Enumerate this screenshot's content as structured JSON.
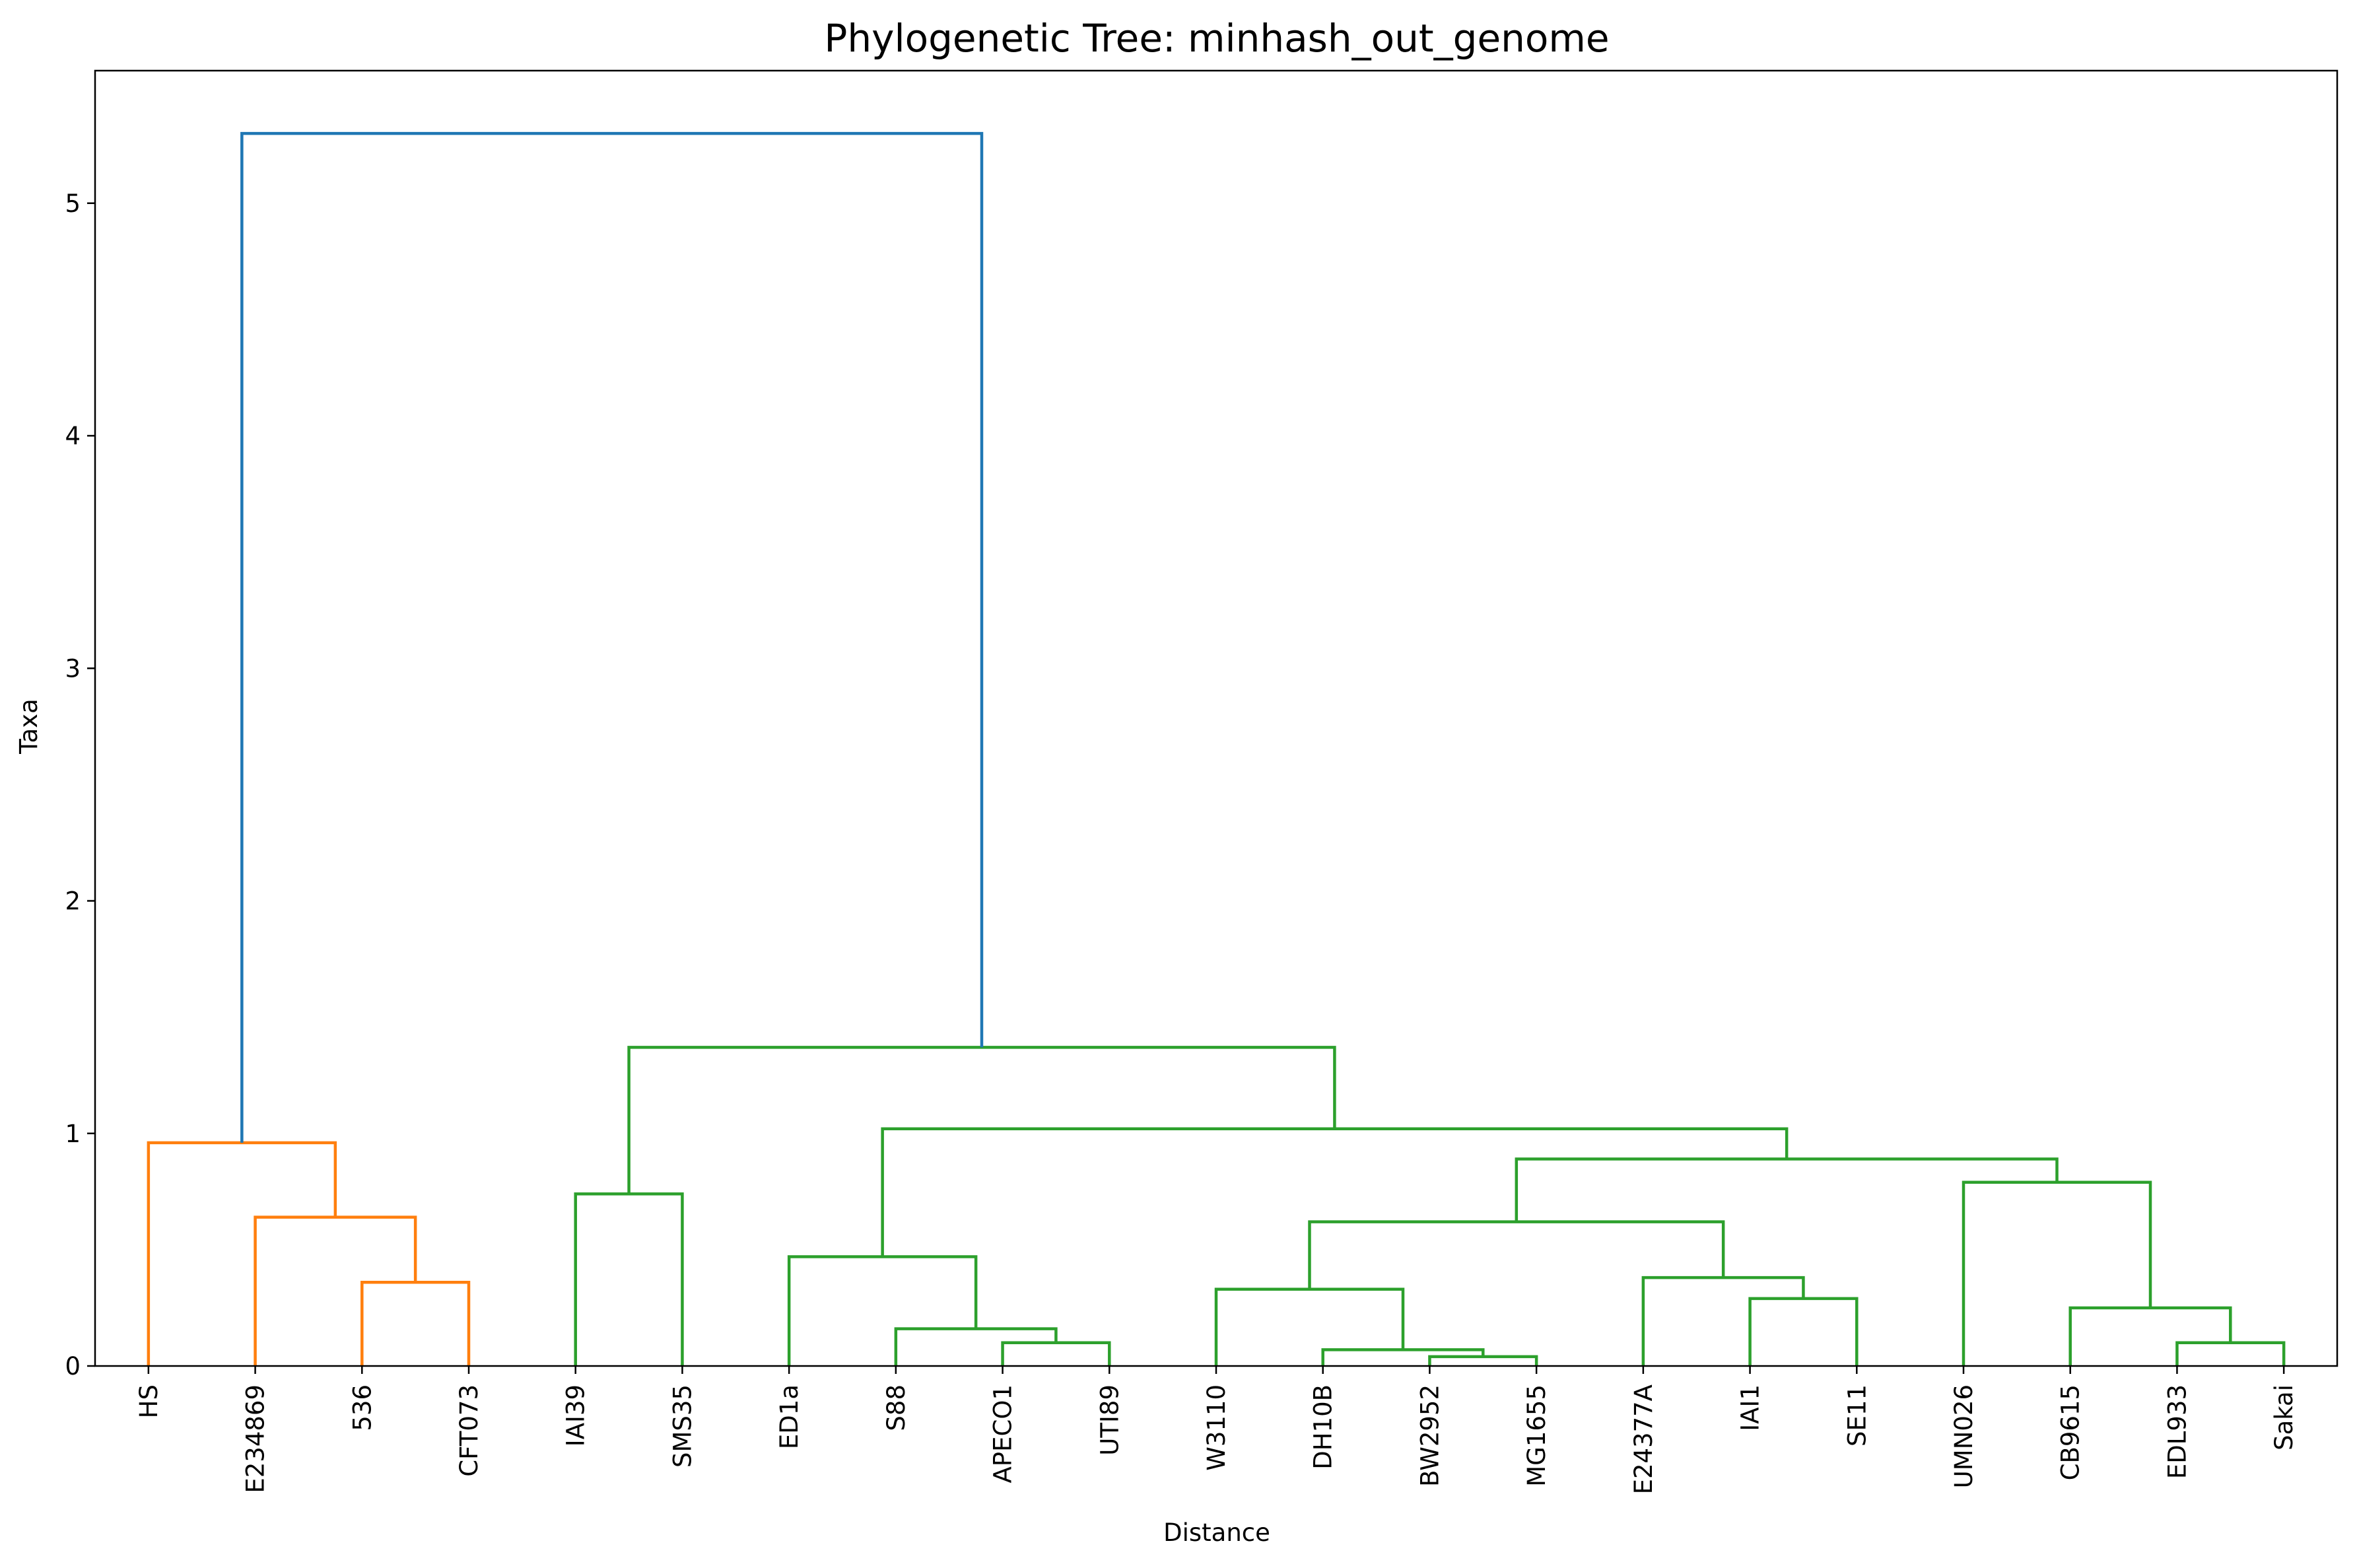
{
  "chart_data": {
    "type": "dendrogram",
    "title": "Phylogenetic Tree: minhash_out_genome",
    "xlabel": "Distance",
    "ylabel": "Taxa",
    "ylim": [
      0,
      5.57
    ],
    "yticks": [
      0,
      1,
      2,
      3,
      4,
      5
    ],
    "grid": false,
    "colors": {
      "root": "#1f77b4",
      "cluster_1": "#ff7f0e",
      "cluster_2": "#2ca02c"
    },
    "leaves": [
      "HS",
      "E234869",
      "536",
      "CFT073",
      "IAI39",
      "SMS35",
      "ED1a",
      "S88",
      "APECO1",
      "UTI89",
      "W3110",
      "DH10B",
      "BW2952",
      "MG1655",
      "E24377A",
      "IAI1",
      "SE11",
      "UMN026",
      "CB9615",
      "EDL933",
      "Sakai"
    ],
    "merges": [
      {
        "id": "m1",
        "left": "536",
        "right": "CFT073",
        "height": 0.36,
        "color": "cluster_1"
      },
      {
        "id": "m2",
        "left": "E234869",
        "right": "m1",
        "height": 0.64,
        "color": "cluster_1"
      },
      {
        "id": "m3",
        "left": "HS",
        "right": "m2",
        "height": 0.96,
        "color": "cluster_1"
      },
      {
        "id": "m4",
        "left": "IAI39",
        "right": "SMS35",
        "height": 0.74,
        "color": "cluster_2"
      },
      {
        "id": "m5",
        "left": "APECO1",
        "right": "UTI89",
        "height": 0.1,
        "color": "cluster_2"
      },
      {
        "id": "m6",
        "left": "S88",
        "right": "m5",
        "height": 0.16,
        "color": "cluster_2"
      },
      {
        "id": "m7",
        "left": "ED1a",
        "right": "m6",
        "height": 0.47,
        "color": "cluster_2"
      },
      {
        "id": "m8",
        "left": "BW2952",
        "right": "MG1655",
        "height": 0.04,
        "color": "cluster_2"
      },
      {
        "id": "m9",
        "left": "DH10B",
        "right": "m8",
        "height": 0.07,
        "color": "cluster_2"
      },
      {
        "id": "m10",
        "left": "W3110",
        "right": "m9",
        "height": 0.33,
        "color": "cluster_2"
      },
      {
        "id": "m11",
        "left": "IAI1",
        "right": "SE11",
        "height": 0.29,
        "color": "cluster_2"
      },
      {
        "id": "m12",
        "left": "E24377A",
        "right": "m11",
        "height": 0.38,
        "color": "cluster_2"
      },
      {
        "id": "m13",
        "left": "m10",
        "right": "m12",
        "height": 0.62,
        "color": "cluster_2"
      },
      {
        "id": "m14",
        "left": "EDL933",
        "right": "Sakai",
        "height": 0.1,
        "color": "cluster_2"
      },
      {
        "id": "m15",
        "left": "CB9615",
        "right": "m14",
        "height": 0.25,
        "color": "cluster_2"
      },
      {
        "id": "m16",
        "left": "UMN026",
        "right": "m15",
        "height": 0.79,
        "color": "cluster_2"
      },
      {
        "id": "m17",
        "left": "m13",
        "right": "m16",
        "height": 0.89,
        "color": "cluster_2"
      },
      {
        "id": "m18",
        "left": "m7",
        "right": "m17",
        "height": 1.02,
        "color": "cluster_2"
      },
      {
        "id": "m19",
        "left": "m4",
        "right": "m18",
        "height": 1.37,
        "color": "cluster_2"
      },
      {
        "id": "m20",
        "left": "m3",
        "right": "m19",
        "height": 5.3,
        "color": "root"
      }
    ]
  }
}
